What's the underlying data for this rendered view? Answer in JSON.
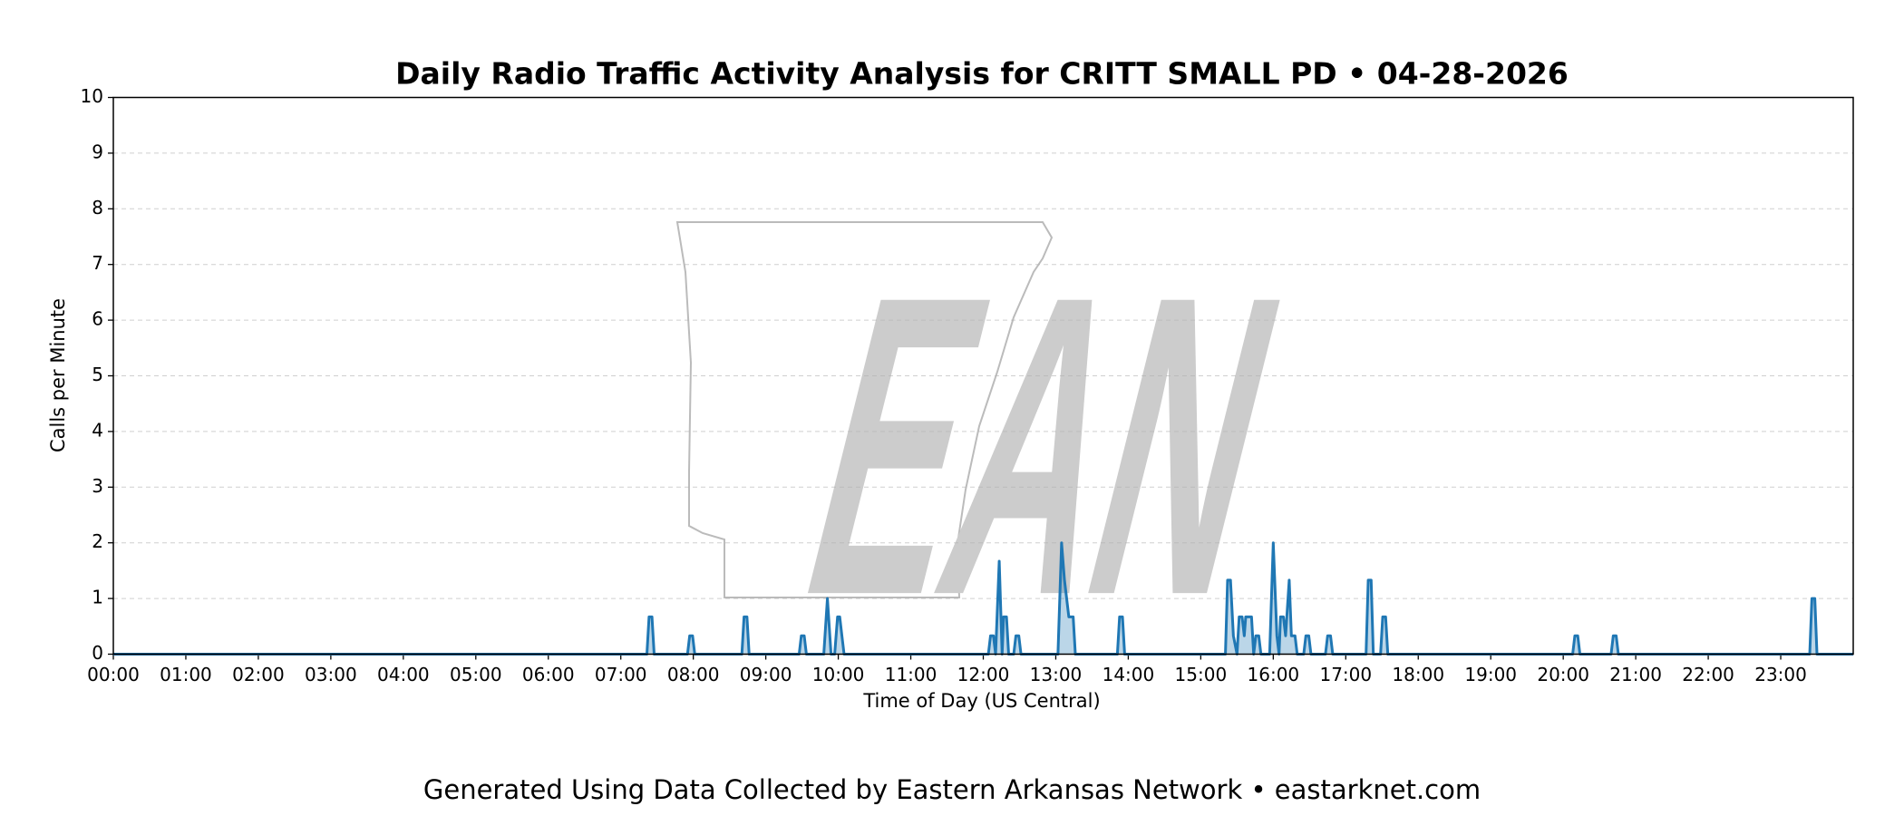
{
  "chart_data": {
    "type": "line",
    "title": "Daily Radio Traffic Activity Analysis for CRITT SMALL PD • 04-28-2026",
    "x_label": "Time of Day (US Central)",
    "y_label": "Calls per Minute",
    "footer": "Generated Using Data Collected by Eastern Arkansas Network • eastarknet.com",
    "watermark": "EAN",
    "color": "#1f77b4",
    "fill": true,
    "grid": true,
    "xlim": [
      0,
      24
    ],
    "ylim": [
      0,
      10
    ],
    "yticks": [
      0,
      1,
      2,
      3,
      4,
      5,
      6,
      7,
      8,
      9,
      10
    ],
    "xticks": [
      {
        "value": 0,
        "label": "00:00"
      },
      {
        "value": 1,
        "label": "01:00"
      },
      {
        "value": 2,
        "label": "02:00"
      },
      {
        "value": 3,
        "label": "03:00"
      },
      {
        "value": 4,
        "label": "04:00"
      },
      {
        "value": 5,
        "label": "05:00"
      },
      {
        "value": 6,
        "label": "06:00"
      },
      {
        "value": 7,
        "label": "07:00"
      },
      {
        "value": 8,
        "label": "08:00"
      },
      {
        "value": 9,
        "label": "09:00"
      },
      {
        "value": 10,
        "label": "10:00"
      },
      {
        "value": 11,
        "label": "11:00"
      },
      {
        "value": 12,
        "label": "12:00"
      },
      {
        "value": 13,
        "label": "13:00"
      },
      {
        "value": 14,
        "label": "14:00"
      },
      {
        "value": 15,
        "label": "15:00"
      },
      {
        "value": 16,
        "label": "16:00"
      },
      {
        "value": 17,
        "label": "17:00"
      },
      {
        "value": 18,
        "label": "18:00"
      },
      {
        "value": 19,
        "label": "19:00"
      },
      {
        "value": 20,
        "label": "20:00"
      },
      {
        "value": 21,
        "label": "21:00"
      },
      {
        "value": 22,
        "label": "22:00"
      },
      {
        "value": 23,
        "label": "23:00"
      }
    ],
    "x": [
      0,
      7.36,
      7.39,
      7.43,
      7.46,
      7.92,
      7.95,
      7.99,
      8.02,
      8.67,
      8.7,
      8.74,
      8.77,
      9.46,
      9.49,
      9.53,
      9.56,
      9.8,
      9.85,
      9.9,
      9.95,
      9.99,
      10.02,
      10.05,
      10.08,
      12.07,
      12.1,
      12.14,
      12.17,
      12.22,
      12.26,
      12.28,
      12.32,
      12.35,
      12.42,
      12.45,
      12.49,
      12.52,
      13.03,
      13.08,
      13.12,
      13.15,
      13.18,
      13.24,
      13.27,
      13.85,
      13.88,
      13.92,
      13.95,
      15.34,
      15.37,
      15.41,
      15.45,
      15.5,
      15.53,
      15.57,
      15.6,
      15.62,
      15.7,
      15.73,
      15.76,
      15.8,
      15.83,
      15.95,
      16,
      16.05,
      16.08,
      16.1,
      16.14,
      16.17,
      16.22,
      16.25,
      16.3,
      16.33,
      16.42,
      16.45,
      16.49,
      16.52,
      16.72,
      16.75,
      16.79,
      16.82,
      17.28,
      17.31,
      17.35,
      17.38,
      17.48,
      17.51,
      17.55,
      17.58,
      20.13,
      20.16,
      20.2,
      20.23,
      20.66,
      20.69,
      20.73,
      20.76,
      23.4,
      23.43,
      23.47,
      23.5,
      24
    ],
    "values": [
      0,
      0,
      0.67,
      0.67,
      0,
      0,
      0.33,
      0.33,
      0,
      0,
      0.67,
      0.67,
      0,
      0,
      0.33,
      0.33,
      0,
      0,
      1,
      0,
      0,
      0.67,
      0.67,
      0.33,
      0,
      0,
      0.33,
      0.33,
      0,
      1.67,
      0,
      0.67,
      0.67,
      0,
      0,
      0.33,
      0.33,
      0,
      0,
      2,
      1.33,
      1,
      0.67,
      0.67,
      0,
      0,
      0.67,
      0.67,
      0,
      0,
      1.33,
      1.33,
      0.33,
      0,
      0.67,
      0.67,
      0.33,
      0.67,
      0.67,
      0,
      0.33,
      0.33,
      0,
      0,
      2,
      0.33,
      0,
      0.67,
      0.67,
      0.33,
      1.33,
      0.33,
      0.33,
      0,
      0,
      0.33,
      0.33,
      0,
      0,
      0.33,
      0.33,
      0,
      0,
      1.33,
      1.33,
      0,
      0,
      0.67,
      0.67,
      0,
      0,
      0.33,
      0.33,
      0,
      0,
      0.33,
      0.33,
      0,
      0,
      1,
      1,
      0,
      0
    ]
  }
}
